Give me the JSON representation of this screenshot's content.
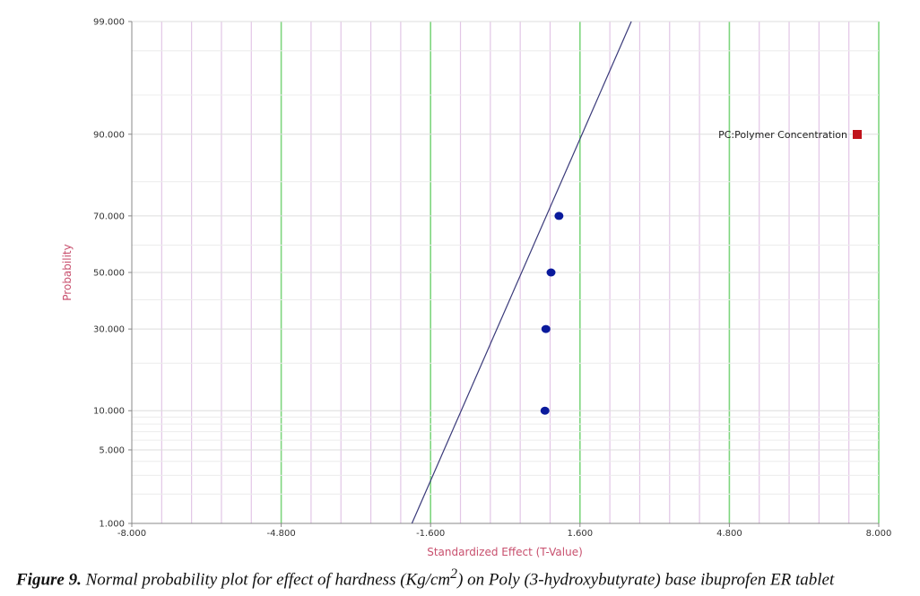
{
  "chart_data": {
    "type": "scatter",
    "title": "",
    "xlabel": "Standardized Effect (T-Value)",
    "ylabel": "Probability",
    "xlim": [
      -8.0,
      8.0
    ],
    "ylim": [
      1.0,
      99.0
    ],
    "y_scale": "normal-probability",
    "x_ticks": [
      "-8.000",
      "-4.800",
      "-1.600",
      "1.600",
      "4.800",
      "8.000"
    ],
    "y_ticks": [
      "1.000",
      "5.000",
      "10.000",
      "30.000",
      "50.000",
      "70.000",
      "90.000",
      "99.000"
    ],
    "grid": true,
    "points": [
      {
        "x": 0.85,
        "y": 10.0
      },
      {
        "x": 0.87,
        "y": 30.0
      },
      {
        "x": 0.98,
        "y": 50.0
      },
      {
        "x": 1.15,
        "y": 70.0
      }
    ],
    "reference_line": [
      {
        "x": -2.0,
        "y": 1.0
      },
      {
        "x": 2.7,
        "y": 99.0
      }
    ],
    "legend": {
      "placement": "top-right",
      "entries": [
        {
          "label": "PC:Polymer Concentration",
          "color": "#c0141c"
        }
      ]
    },
    "colors": {
      "points": "#0a1a9c",
      "line": "#3a3a7a",
      "grid_major": "#7ed67e",
      "grid_minor": "#e2c6e6",
      "axis_label": "#c8506e"
    }
  },
  "caption": {
    "prefix": "Figure 9.",
    "text_before_sup": " Normal probability plot for effect of hardness (Kg/cm",
    "sup": "2",
    "text_after_sup": ") on Poly (3-hydroxybutyrate) base ibuprofen ER tablet"
  }
}
